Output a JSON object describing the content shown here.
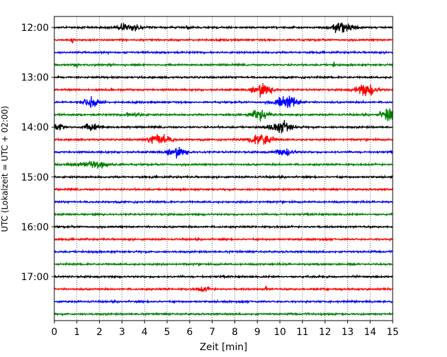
{
  "chart_data": {
    "type": "line",
    "xlabel": "Zeit  [min]",
    "ylabel": "UTC (Lokalzeit = UTC + 02:00)",
    "xlim": [
      0,
      15
    ],
    "x_ticks": [
      "0",
      "1",
      "2",
      "3",
      "4",
      "5",
      "6",
      "7",
      "8",
      "9",
      "10",
      "11",
      "12",
      "13",
      "14",
      "15"
    ],
    "y_ticks": [
      "12:00",
      "13:00",
      "14:00",
      "15:00",
      "16:00",
      "17:00"
    ],
    "grid": "vertical dotted",
    "trace_colors": [
      "#000000",
      "#ff0000",
      "#0000ff",
      "#008000"
    ],
    "traces": [
      {
        "start": "12:00",
        "events": [
          {
            "t": 3.3,
            "amp": 9,
            "w": 0.5
          },
          {
            "t": 12.7,
            "amp": 14,
            "w": 0.45
          },
          {
            "t": 5.9,
            "amp": 9,
            "w": 0.05
          }
        ]
      },
      {
        "start": "12:15",
        "events": [
          {
            "t": 0.8,
            "amp": 9,
            "w": 0.05
          }
        ]
      },
      {
        "start": "12:30",
        "events": []
      },
      {
        "start": "12:45",
        "events": [
          {
            "t": 1.0,
            "amp": 5,
            "w": 0.1
          },
          {
            "t": 12.4,
            "amp": 6,
            "w": 0.05
          }
        ]
      },
      {
        "start": "13:00",
        "events": []
      },
      {
        "start": "13:15",
        "events": [
          {
            "t": 9.2,
            "amp": 14,
            "w": 0.45
          },
          {
            "t": 13.8,
            "amp": 14,
            "w": 0.45
          }
        ]
      },
      {
        "start": "13:30",
        "events": [
          {
            "t": 1.6,
            "amp": 10,
            "w": 0.4
          },
          {
            "t": 10.3,
            "amp": 15,
            "w": 0.5
          }
        ]
      },
      {
        "start": "13:45",
        "events": [
          {
            "t": 9.1,
            "amp": 12,
            "w": 0.4
          },
          {
            "t": 14.8,
            "amp": 17,
            "w": 0.3
          },
          {
            "t": 3.5,
            "amp": 5,
            "w": 0.4
          }
        ]
      },
      {
        "start": "14:00",
        "events": [
          {
            "t": 0.2,
            "amp": 9,
            "w": 0.25
          },
          {
            "t": 1.7,
            "amp": 9,
            "w": 0.4
          },
          {
            "t": 10.1,
            "amp": 14,
            "w": 0.5
          }
        ]
      },
      {
        "start": "14:15",
        "events": [
          {
            "t": 4.7,
            "amp": 14,
            "w": 0.45
          },
          {
            "t": 9.2,
            "amp": 16,
            "w": 0.45
          }
        ]
      },
      {
        "start": "14:30",
        "events": [
          {
            "t": 5.4,
            "amp": 11,
            "w": 0.45
          },
          {
            "t": 10.2,
            "amp": 7,
            "w": 0.4
          }
        ]
      },
      {
        "start": "14:45",
        "events": [
          {
            "t": 1.8,
            "amp": 7,
            "w": 0.8
          }
        ]
      },
      {
        "start": "15:00",
        "events": []
      },
      {
        "start": "15:15",
        "events": []
      },
      {
        "start": "15:30",
        "events": []
      },
      {
        "start": "15:45",
        "events": []
      },
      {
        "start": "16:00",
        "events": []
      },
      {
        "start": "16:15",
        "events": []
      },
      {
        "start": "16:30",
        "events": []
      },
      {
        "start": "16:45",
        "events": []
      },
      {
        "start": "17:00",
        "events": []
      },
      {
        "start": "17:15",
        "events": [
          {
            "t": 6.6,
            "amp": 6,
            "w": 0.3
          },
          {
            "t": 9.4,
            "amp": 8,
            "w": 0.05
          }
        ]
      },
      {
        "start": "17:30",
        "events": []
      },
      {
        "start": "17:45",
        "events": []
      }
    ]
  }
}
